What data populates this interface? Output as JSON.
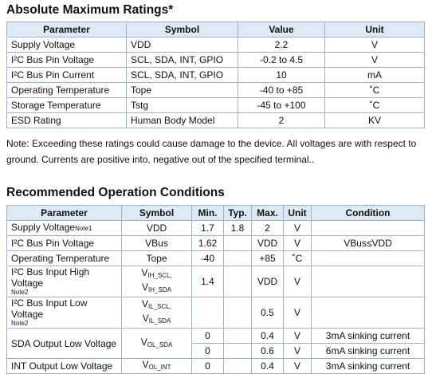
{
  "absolute_max": {
    "title": "Absolute Maximum Ratings*",
    "header": [
      "Parameter",
      "Symbol",
      "Value",
      "Unit"
    ],
    "rows": [
      [
        "Supply Voltage",
        "VDD",
        "2.2",
        "V"
      ],
      [
        "I²C Bus Pin Voltage",
        "SCL, SDA, INT, GPIO",
        "-0.2 to 4.5",
        "V"
      ],
      [
        "I²C Bus Pin Current",
        "SCL, SDA, INT, GPIO",
        "10",
        "mA"
      ],
      [
        "Operating Temperature",
        "Tope",
        "-40 to +85",
        "˚C"
      ],
      [
        "Storage Temperature",
        "Tstg",
        "-45 to +100",
        "˚C"
      ],
      [
        "ESD Rating",
        "Human Body Model",
        "2",
        "KV"
      ]
    ],
    "note": "Note: Exceeding these ratings could cause damage to the device. All voltages are with respect to ground. Currents are positive into, negative out of the specified terminal.."
  },
  "recommended": {
    "title": "Recommended Operation Conditions",
    "header": [
      "Parameter",
      "Symbol",
      "Min.",
      "Typ.",
      "Max.",
      "Unit",
      "Condition"
    ],
    "rows": [
      {
        "parameter": "Supply Voltage",
        "note": "Note1",
        "symbol": "VDD",
        "min": "1.7",
        "typ": "1.8",
        "max": "2",
        "unit": "V"
      },
      {
        "parameter": "I²C Bus Pin Voltage",
        "symbol": "VBus",
        "min": "1.62",
        "max": "VDD",
        "unit": "V",
        "condition": "VBus≤VDD"
      },
      {
        "parameter": "Operating Temperature",
        "symbol": "Tope",
        "min": "-40",
        "max": "+85",
        "unit": "˚C"
      },
      {
        "parameter": "I²C Bus Input High Voltage",
        "note": "Note2",
        "symbol": [
          {
            "base": "V",
            "sub": "IH_SCL,"
          },
          {
            "base": "V",
            "sub": "IH_SDA"
          }
        ],
        "min": "1.4",
        "max": "VDD",
        "unit": "V"
      },
      {
        "parameter": "I²C Bus Input Low Voltage",
        "note": "Note2",
        "symbol": [
          {
            "base": "V",
            "sub": "IL_SCL,"
          },
          {
            "base": "V",
            "sub": "IL_SDA"
          }
        ],
        "max": "0.5",
        "unit": "V"
      },
      {
        "parameter": "SDA Output Low Voltage",
        "symbol": [
          {
            "base": "V",
            "sub": "OL_SDA"
          }
        ],
        "sub_rows": [
          {
            "min": "0",
            "max": "0.4",
            "unit": "V",
            "condition": "3mA sinking current"
          },
          {
            "min": "0",
            "max": "0.6",
            "unit": "V",
            "condition": "6mA sinking current"
          }
        ]
      },
      {
        "parameter": "INT Output Low Voltage",
        "symbol": [
          {
            "base": "V",
            "sub": "OL_INT"
          }
        ],
        "min": "0",
        "max": "0.4",
        "unit": "V",
        "condition": "3mA sinking current"
      }
    ]
  }
}
